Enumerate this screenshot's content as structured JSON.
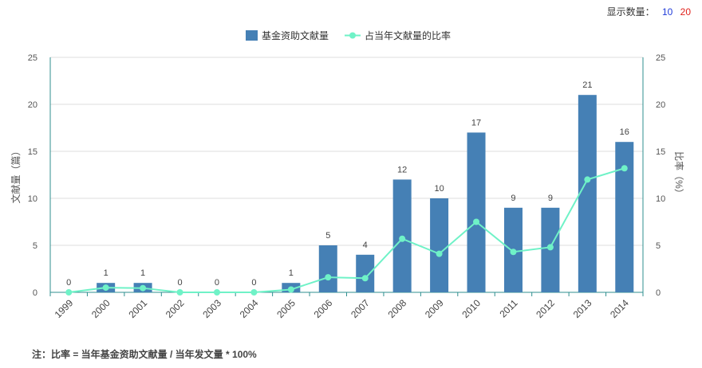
{
  "display_control": {
    "label": "显示数量：",
    "options": [
      "10",
      "20"
    ]
  },
  "footnote": "注：比率 = 当年基金资助文献量 / 当年发文量 * 100%",
  "chart_data": {
    "type": "bar+line",
    "categories": [
      "1999",
      "2000",
      "2001",
      "2002",
      "2003",
      "2004",
      "2005",
      "2006",
      "2007",
      "2008",
      "2009",
      "2010",
      "2011",
      "2012",
      "2013",
      "2014"
    ],
    "series": [
      {
        "name": "基金资助文献量",
        "type": "bar",
        "axis": "left",
        "color": "#4580b5",
        "values": [
          0,
          1,
          1,
          0,
          0,
          0,
          1,
          5,
          4,
          12,
          10,
          17,
          9,
          9,
          21,
          16
        ]
      },
      {
        "name": "占当年文献量的比率",
        "type": "line",
        "axis": "right",
        "color": "#6ff2c7",
        "values": [
          0,
          0.5,
          0.45,
          0,
          0,
          0,
          0.3,
          1.6,
          1.5,
          5.7,
          4.1,
          7.5,
          4.3,
          4.8,
          12.0,
          13.2
        ]
      }
    ],
    "ylabel_left": "文献量（篇）",
    "ylabel_right": "比率（%）",
    "ylim_left": [
      0,
      25
    ],
    "ylim_right": [
      0,
      25
    ],
    "yticks": [
      0,
      5,
      10,
      15,
      20,
      25
    ],
    "legend_position": "top-center",
    "grid": true
  }
}
